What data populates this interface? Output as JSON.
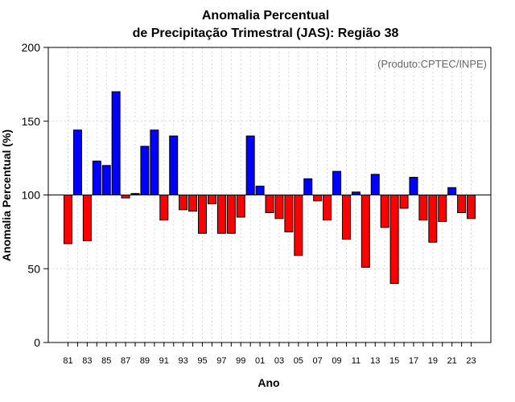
{
  "chart_data": {
    "type": "bar",
    "title_line1": "Anomalia Percentual",
    "title_line2": "de Precipitação Trimestral (JAS): Região 38",
    "source_label": "(Produto:CPTEC/INPE)",
    "xlabel": "Ano",
    "ylabel": "Anomalia Percentual (%)",
    "ylim": [
      0,
      200
    ],
    "yticks": [
      0,
      50,
      100,
      150,
      200
    ],
    "baseline": 100,
    "grid": true,
    "colors": {
      "above": "#0000ff",
      "below": "#ff0000",
      "edge": "#000000",
      "grid": "#d9d9d9"
    },
    "categories": [
      "81",
      "82",
      "83",
      "84",
      "85",
      "86",
      "87",
      "88",
      "89",
      "90",
      "91",
      "92",
      "93",
      "94",
      "95",
      "96",
      "97",
      "98",
      "99",
      "00",
      "01",
      "02",
      "03",
      "04",
      "05",
      "06",
      "07",
      "08",
      "09",
      "10",
      "11",
      "12",
      "13",
      "14",
      "15",
      "16",
      "17",
      "18",
      "19",
      "20",
      "21",
      "22",
      "23"
    ],
    "tick_labels": [
      "81",
      "83",
      "85",
      "87",
      "89",
      "91",
      "93",
      "95",
      "97",
      "99",
      "01",
      "03",
      "05",
      "07",
      "09",
      "11",
      "13",
      "15",
      "17",
      "19",
      "21",
      "23"
    ],
    "values": [
      67,
      144,
      69,
      123,
      120,
      170,
      98,
      101,
      133,
      144,
      83,
      140,
      90,
      89,
      74,
      94,
      74,
      74,
      85,
      140,
      106,
      88,
      84,
      75,
      59,
      111,
      96,
      83,
      116,
      70,
      102,
      51,
      114,
      78,
      40,
      91,
      112,
      83,
      68,
      82,
      105,
      88,
      84
    ]
  }
}
